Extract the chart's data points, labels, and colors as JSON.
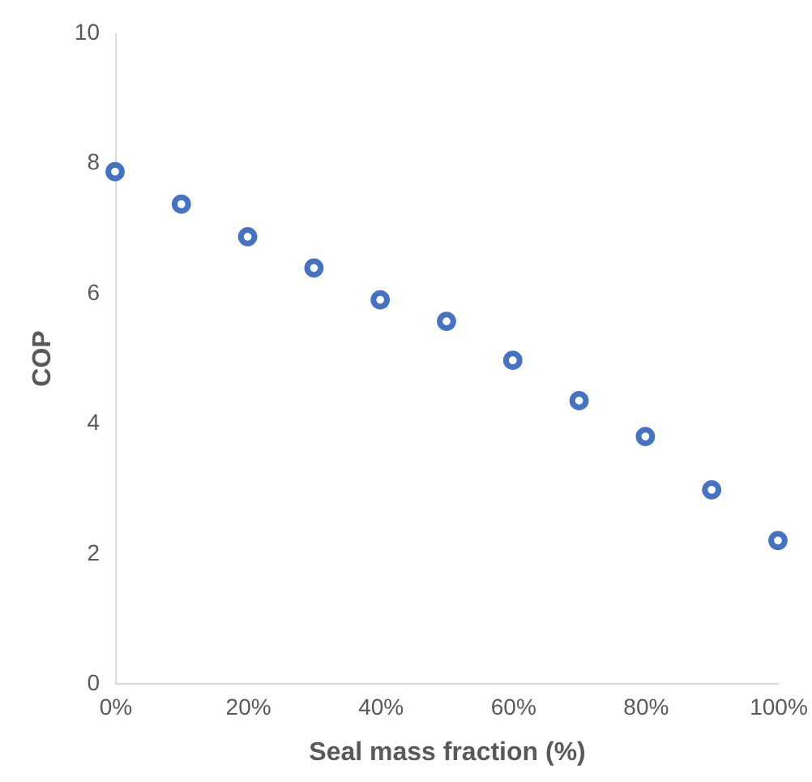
{
  "chart_data": {
    "type": "scatter",
    "xlabel": "Seal mass fraction (%)",
    "ylabel": "COP",
    "x": [
      0,
      10,
      20,
      30,
      40,
      50,
      60,
      70,
      80,
      90,
      100
    ],
    "series": [
      {
        "color": "#4472c4",
        "values": [
          7.86,
          7.36,
          6.86,
          6.38,
          5.89,
          5.56,
          4.96,
          4.34,
          3.79,
          2.97,
          2.19
        ]
      }
    ],
    "xlim": [
      0,
      100
    ],
    "xticks": [
      {
        "value": 0,
        "label": "0%"
      },
      {
        "value": 20,
        "label": "20%"
      },
      {
        "value": 40,
        "label": "40%"
      },
      {
        "value": 60,
        "label": "60%"
      },
      {
        "value": 80,
        "label": "80%"
      },
      {
        "value": 100,
        "label": "100%"
      }
    ],
    "ylim": [
      0,
      10
    ],
    "yticks": [
      0,
      2,
      4,
      6,
      8,
      10
    ],
    "grid": false,
    "marker": "circle"
  }
}
